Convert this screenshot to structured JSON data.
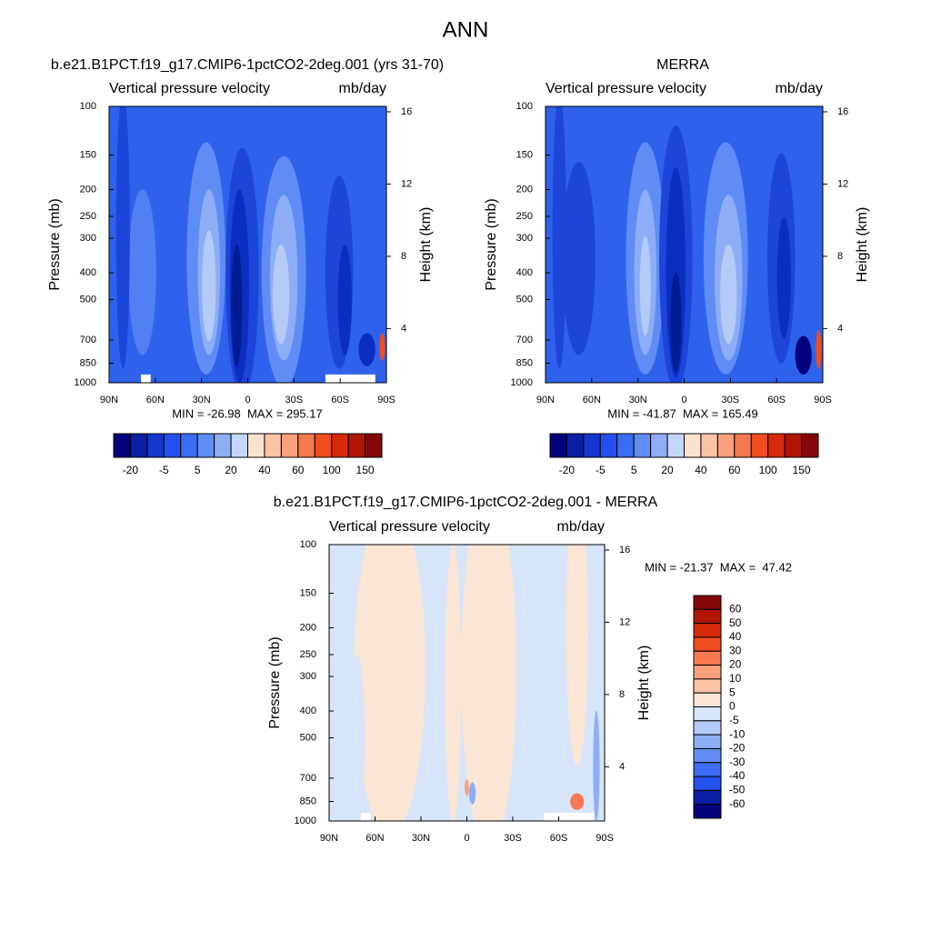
{
  "title": "ANN",
  "chart_data": [
    {
      "type": "contour",
      "title": "b.e21.B1PCT.f19_g17.CMIP6-1pctCO2-2deg.001 (yrs 31-70)",
      "subtitle_left": "Vertical pressure velocity",
      "subtitle_right": "mb/day",
      "ylabel": "Pressure (mb)",
      "y2label": "Height (km)",
      "xlim": [
        90,
        -90
      ],
      "xticks": [
        {
          "value": 90,
          "label": "90N"
        },
        {
          "value": 60,
          "label": "60N"
        },
        {
          "value": 30,
          "label": "30N"
        },
        0,
        {
          "value": -30,
          "label": "30S"
        },
        {
          "value": -60,
          "label": "60S"
        },
        {
          "value": -90,
          "label": "90S"
        }
      ],
      "ylim": [
        1000,
        100
      ],
      "log_scale": true,
      "yticks": [
        100,
        150,
        200,
        250,
        300,
        400,
        500,
        700,
        850,
        1000
      ],
      "y2lim": [
        1,
        16.3
      ],
      "y2ticks": [
        4,
        8,
        12,
        16
      ],
      "stats": "MIN = -26.98  MAX = 295.17",
      "colorbar": {
        "colors": [
          "#02037d",
          "#0a1fa6",
          "#1537d0",
          "#2450f0",
          "#3b6ef5",
          "#5f8df5",
          "#8dadf7",
          "#c4d7fa",
          "#fbe2d0",
          "#fbc3a5",
          "#f9a07c",
          "#f7794f",
          "#f04d20",
          "#d92a0b",
          "#b01506",
          "#850606"
        ],
        "labels": [
          -20,
          -5,
          5,
          20,
          40,
          60,
          100,
          150
        ]
      }
    },
    {
      "type": "contour",
      "title": "MERRA",
      "subtitle_left": "Vertical pressure velocity",
      "subtitle_right": "mb/day",
      "ylabel": "Pressure (mb)",
      "y2label": "Height (km)",
      "xlim": [
        90,
        -90
      ],
      "xticks": [
        {
          "value": 90,
          "label": "90N"
        },
        {
          "value": 60,
          "label": "60N"
        },
        {
          "value": 30,
          "label": "30N"
        },
        0,
        {
          "value": -30,
          "label": "30S"
        },
        {
          "value": -60,
          "label": "60S"
        },
        {
          "value": -90,
          "label": "90S"
        }
      ],
      "ylim": [
        1000,
        100
      ],
      "log_scale": true,
      "yticks": [
        100,
        150,
        200,
        250,
        300,
        400,
        500,
        700,
        850,
        1000
      ],
      "y2lim": [
        1,
        16.3
      ],
      "y2ticks": [
        4,
        8,
        12,
        16
      ],
      "stats": "MIN = -41.87  MAX = 165.49",
      "colorbar": {
        "colors": [
          "#02037d",
          "#0a1fa6",
          "#1537d0",
          "#2450f0",
          "#3b6ef5",
          "#5f8df5",
          "#8dadf7",
          "#c4d7fa",
          "#fbe2d0",
          "#fbc3a5",
          "#f9a07c",
          "#f7794f",
          "#f04d20",
          "#d92a0b",
          "#b01506",
          "#850606"
        ],
        "labels": [
          -20,
          -5,
          5,
          20,
          40,
          60,
          100,
          150
        ]
      }
    },
    {
      "type": "contour",
      "title": "b.e21.B1PCT.f19_g17.CMIP6-1pctCO2-2deg.001 - MERRA",
      "subtitle_left": "Vertical pressure velocity",
      "subtitle_right": "mb/day",
      "ylabel": "Pressure (mb)",
      "y2label": "Height (km)",
      "xlim": [
        90,
        -90
      ],
      "xticks": [
        {
          "value": 90,
          "label": "90N"
        },
        {
          "value": 60,
          "label": "60N"
        },
        {
          "value": 30,
          "label": "30N"
        },
        0,
        {
          "value": -30,
          "label": "30S"
        },
        {
          "value": -60,
          "label": "60S"
        },
        {
          "value": -90,
          "label": "90S"
        }
      ],
      "ylim": [
        1000,
        100
      ],
      "log_scale": true,
      "yticks": [
        100,
        150,
        200,
        250,
        300,
        400,
        500,
        700,
        850,
        1000
      ],
      "y2lim": [
        1,
        16.3
      ],
      "y2ticks": [
        4,
        8,
        12,
        16
      ],
      "stats": "MIN = -21.37  MAX =  47.42",
      "colorbar": {
        "colors": [
          "#850606",
          "#b01506",
          "#d92a0b",
          "#f04d20",
          "#f7794f",
          "#f9a07c",
          "#fbc3a5",
          "#fbe6d6",
          "#d6e5fa",
          "#b4cbf8",
          "#8dadf7",
          "#5f8df5",
          "#3b6ef5",
          "#2450f0",
          "#0a1fa6",
          "#02037d"
        ],
        "labels": [
          60,
          50,
          40,
          30,
          20,
          10,
          5,
          0,
          -5,
          -10,
          -20,
          -30,
          -40,
          -50,
          -60
        ]
      }
    }
  ]
}
